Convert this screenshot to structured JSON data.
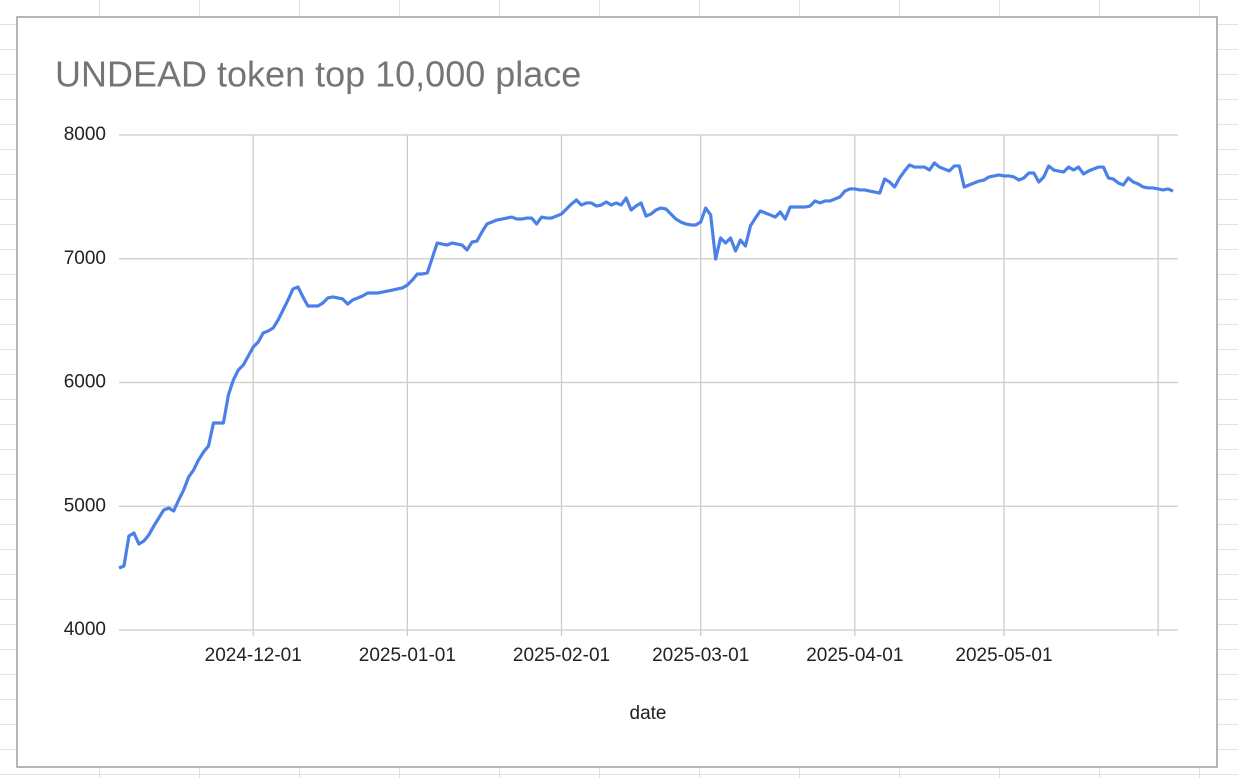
{
  "chart_data": {
    "type": "line",
    "title": "UNDEAD token top 10,000 place",
    "xlabel": "date",
    "color": "#4a80e8",
    "grid": true,
    "xlim": [
      "2024-11-04",
      "2025-06-05"
    ],
    "xticks": [
      "2024-12-01",
      "2025-01-01",
      "2025-02-01",
      "2025-03-01",
      "2025-04-01",
      "2025-05-01",
      {
        "value": "2025-06-01",
        "label": null
      }
    ],
    "ylim": [
      4000,
      8000
    ],
    "yticks": [
      4000,
      5000,
      6000,
      7000,
      8000
    ],
    "x": [
      "2024-11-04",
      "2024-11-05",
      "2024-11-06",
      "2024-11-07",
      "2024-11-08",
      "2024-11-09",
      "2024-11-10",
      "2024-11-11",
      "2024-11-12",
      "2024-11-13",
      "2024-11-14",
      "2024-11-15",
      "2024-11-16",
      "2024-11-17",
      "2024-11-18",
      "2024-11-19",
      "2024-11-20",
      "2024-11-21",
      "2024-11-22",
      "2024-11-23",
      "2024-11-24",
      "2024-11-25",
      "2024-11-26",
      "2024-11-27",
      "2024-11-28",
      "2024-11-29",
      "2024-11-30",
      "2024-12-01",
      "2024-12-02",
      "2024-12-03",
      "2024-12-04",
      "2024-12-05",
      "2024-12-06",
      "2024-12-07",
      "2024-12-08",
      "2024-12-09",
      "2024-12-10",
      "2024-12-11",
      "2024-12-12",
      "2024-12-13",
      "2024-12-14",
      "2024-12-15",
      "2024-12-16",
      "2024-12-17",
      "2024-12-18",
      "2024-12-19",
      "2024-12-20",
      "2024-12-21",
      "2024-12-22",
      "2024-12-23",
      "2024-12-24",
      "2024-12-25",
      "2024-12-26",
      "2024-12-27",
      "2024-12-28",
      "2024-12-29",
      "2024-12-30",
      "2024-12-31",
      "2025-01-01",
      "2025-01-02",
      "2025-01-03",
      "2025-01-04",
      "2025-01-05",
      "2025-01-06",
      "2025-01-07",
      "2025-01-08",
      "2025-01-09",
      "2025-01-10",
      "2025-01-11",
      "2025-01-12",
      "2025-01-13",
      "2025-01-14",
      "2025-01-15",
      "2025-01-16",
      "2025-01-17",
      "2025-01-18",
      "2025-01-19",
      "2025-01-20",
      "2025-01-21",
      "2025-01-22",
      "2025-01-23",
      "2025-01-24",
      "2025-01-25",
      "2025-01-26",
      "2025-01-27",
      "2025-01-28",
      "2025-01-29",
      "2025-01-30",
      "2025-01-31",
      "2025-02-01",
      "2025-02-02",
      "2025-02-03",
      "2025-02-04",
      "2025-02-05",
      "2025-02-06",
      "2025-02-07",
      "2025-02-08",
      "2025-02-09",
      "2025-02-10",
      "2025-02-11",
      "2025-02-12",
      "2025-02-13",
      "2025-02-14",
      "2025-02-15",
      "2025-02-16",
      "2025-02-17",
      "2025-02-18",
      "2025-02-19",
      "2025-02-20",
      "2025-02-21",
      "2025-02-22",
      "2025-02-23",
      "2025-02-24",
      "2025-02-25",
      "2025-02-26",
      "2025-02-27",
      "2025-02-28",
      "2025-03-01",
      "2025-03-02",
      "2025-03-03",
      "2025-03-04",
      "2025-03-05",
      "2025-03-06",
      "2025-03-07",
      "2025-03-08",
      "2025-03-09",
      "2025-03-10",
      "2025-03-11",
      "2025-03-12",
      "2025-03-13",
      "2025-03-14",
      "2025-03-15",
      "2025-03-16",
      "2025-03-17",
      "2025-03-18",
      "2025-03-19",
      "2025-03-20",
      "2025-03-21",
      "2025-03-22",
      "2025-03-23",
      "2025-03-24",
      "2025-03-25",
      "2025-03-26",
      "2025-03-27",
      "2025-03-28",
      "2025-03-29",
      "2025-03-30",
      "2025-03-31",
      "2025-04-01",
      "2025-04-02",
      "2025-04-03",
      "2025-04-04",
      "2025-04-05",
      "2025-04-06",
      "2025-04-07",
      "2025-04-08",
      "2025-04-09",
      "2025-04-10",
      "2025-04-11",
      "2025-04-12",
      "2025-04-13",
      "2025-04-14",
      "2025-04-15",
      "2025-04-16",
      "2025-04-17",
      "2025-04-18",
      "2025-04-19",
      "2025-04-20",
      "2025-04-21",
      "2025-04-22",
      "2025-04-23",
      "2025-04-24",
      "2025-04-25",
      "2025-04-26",
      "2025-04-27",
      "2025-04-28",
      "2025-04-29",
      "2025-04-30",
      "2025-05-01",
      "2025-05-02",
      "2025-05-03",
      "2025-05-04",
      "2025-05-05",
      "2025-05-06",
      "2025-05-07",
      "2025-05-08",
      "2025-05-09",
      "2025-05-10",
      "2025-05-11",
      "2025-05-12",
      "2025-05-13",
      "2025-05-14",
      "2025-05-15",
      "2025-05-16",
      "2025-05-17",
      "2025-05-18",
      "2025-05-19",
      "2025-05-20",
      "2025-05-21",
      "2025-05-22",
      "2025-05-23",
      "2025-05-24",
      "2025-05-25",
      "2025-05-26",
      "2025-05-27",
      "2025-05-28",
      "2025-05-29",
      "2025-05-30",
      "2025-05-31",
      "2025-06-01",
      "2025-06-02",
      "2025-06-03",
      "2025-06-04"
    ],
    "values": [
      4501,
      4517,
      4760,
      4784,
      4695,
      4719,
      4768,
      4840,
      4905,
      4970,
      4986,
      4962,
      5050,
      5131,
      5236,
      5293,
      5374,
      5438,
      5487,
      5673,
      5673,
      5673,
      5899,
      6020,
      6101,
      6141,
      6214,
      6287,
      6327,
      6400,
      6416,
      6440,
      6505,
      6586,
      6667,
      6756,
      6772,
      6691,
      6618,
      6618,
      6618,
      6642,
      6683,
      6691,
      6683,
      6675,
      6634,
      6667,
      6683,
      6699,
      6723,
      6723,
      6723,
      6731,
      6739,
      6747,
      6756,
      6764,
      6788,
      6828,
      6877,
      6877,
      6885,
      7006,
      7127,
      7119,
      7111,
      7127,
      7119,
      7111,
      7071,
      7135,
      7143,
      7216,
      7281,
      7297,
      7313,
      7321,
      7329,
      7337,
      7321,
      7321,
      7329,
      7329,
      7281,
      7337,
      7329,
      7329,
      7345,
      7362,
      7402,
      7442,
      7475,
      7434,
      7451,
      7451,
      7426,
      7434,
      7459,
      7434,
      7451,
      7434,
      7491,
      7394,
      7426,
      7451,
      7345,
      7362,
      7394,
      7410,
      7402,
      7362,
      7321,
      7297,
      7281,
      7273,
      7273,
      7297,
      7410,
      7354,
      6998,
      7168,
      7127,
      7168,
      7063,
      7151,
      7103,
      7265,
      7329,
      7386,
      7370,
      7354,
      7337,
      7378,
      7321,
      7418,
      7418,
      7418,
      7418,
      7426,
      7467,
      7451,
      7467,
      7467,
      7483,
      7499,
      7547,
      7564,
      7564,
      7556,
      7556,
      7547,
      7539,
      7531,
      7644,
      7620,
      7580,
      7653,
      7709,
      7758,
      7741,
      7741,
      7741,
      7717,
      7774,
      7741,
      7725,
      7709,
      7750,
      7750,
      7580,
      7596,
      7612,
      7628,
      7636,
      7661,
      7669,
      7677,
      7669,
      7669,
      7661,
      7636,
      7653,
      7693,
      7693,
      7620,
      7661,
      7750,
      7717,
      7709,
      7701,
      7741,
      7717,
      7741,
      7685,
      7709,
      7725,
      7741,
      7741,
      7653,
      7644,
      7612,
      7596,
      7653,
      7620,
      7604,
      7580,
      7572,
      7572,
      7564,
      7556,
      7564,
      7547
    ]
  }
}
